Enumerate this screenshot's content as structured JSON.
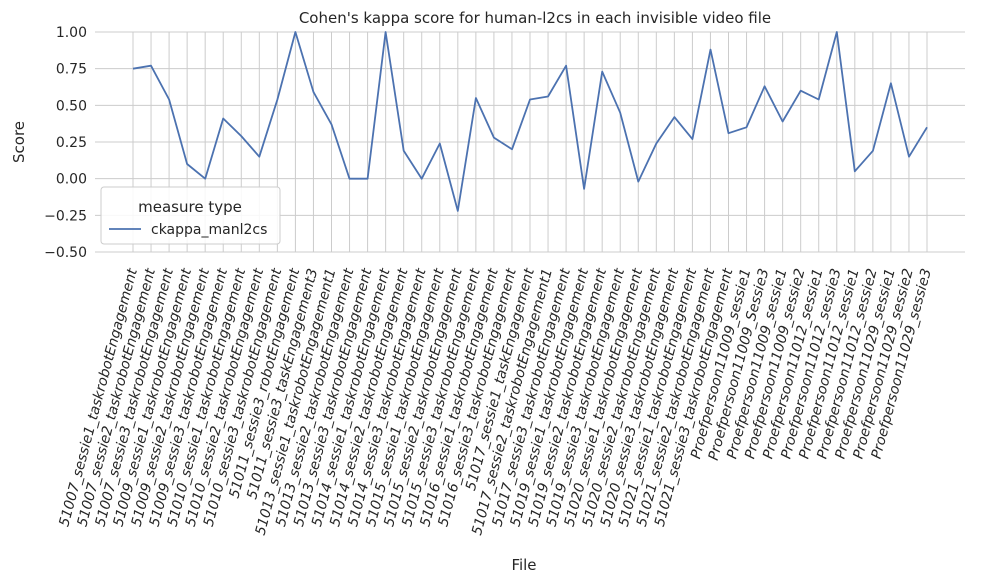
{
  "chart_data": {
    "type": "line",
    "title": "Cohen's kappa score for human-l2cs in each invisible video file",
    "xlabel": "File",
    "ylabel": "Score",
    "ylim": [
      -0.5,
      1.0
    ],
    "yticks": [
      -0.5,
      -0.25,
      0.0,
      0.25,
      0.5,
      0.75,
      1.0
    ],
    "ytick_labels": [
      "−0.50",
      "−0.25",
      "0.00",
      "0.25",
      "0.50",
      "0.75",
      "1.00"
    ],
    "grid": true,
    "legend": {
      "title": "measure type",
      "placement": "lower-left"
    },
    "categories": [
      "51007_sessie1_taskrobotEngagement",
      "51007_sessie2_taskrobotEngagement",
      "51007_sessie3_taskrobotEngagement",
      "51009_sessie1_taskrobotEngagement",
      "51009_sessie2_taskrobotEngagement",
      "51009_sessie3_taskrobotEngagement",
      "51010_sessie1_taskrobotEngagement",
      "51010_sessie2_taskrobotEngagement",
      "51010_sessie3_taskrobotEngagement",
      "51011_sessie3_robotEngagement",
      "51011_sessie3_taskEngagement3",
      "51013_sessie1_taskrobotEngagement1",
      "51013_sessie2_taskrobotEngagement",
      "51013_sessie3_taskrobotEngagement",
      "51014_sessie1_taskrobotEngagement",
      "51014_sessie2_taskrobotEngagement",
      "51014_sessie3_taskrobotEngagement",
      "51015_sessie1_taskrobotEngagement",
      "51015_sessie2_taskrobotEngagement",
      "51015_sessie3_taskrobotEngagement",
      "51016_sessie1_taskrobotEngagement",
      "51016_sessie3_taskrobotEngagement",
      "51017_sessie1_taskEngagement",
      "51017_sessie2_taskrobotEngagement1",
      "51017_sessie3_taskrobotEngagement",
      "51019_sessie1_taskrobotEngagement",
      "51019_sessie2_taskrobotEngagement",
      "51019_sessie3_taskrobotEngagement",
      "51020_sessie1_taskrobotEngagement",
      "51020_sessie2_taskrobotEngagement",
      "51020_sessie3_taskrobotEngagement",
      "51021_sessie1_taskrobotEngagement",
      "51021_sessie2_taskrobotEngagement",
      "51021_sessie3_taskrobotEngagement",
      "Proefpersoon11009_sessie1",
      "Proefpersoon11009_Sessie3",
      "Proefpersoon11009_sessie1",
      "Proefpersoon11009_sessie2",
      "Proefpersoon11012_sessie1",
      "Proefpersoon11012_sessie3",
      "Proefpersoon11012_sessie1",
      "Proefpersoon11012_sessie2",
      "Proefpersoon11029_sessie1",
      "Proefpersoon11029_sessie2",
      "Proefpersoon11029_sessie3"
    ],
    "series": [
      {
        "name": "ckappa_manl2cs",
        "color": "#4c72b0",
        "values": [
          0.75,
          0.77,
          0.54,
          0.1,
          0.0,
          0.41,
          0.29,
          0.15,
          0.54,
          1.0,
          0.59,
          0.37,
          0.0,
          0.0,
          1.0,
          0.19,
          0.0,
          0.24,
          -0.22,
          0.55,
          0.28,
          0.2,
          0.54,
          0.56,
          0.77,
          -0.07,
          0.73,
          0.45,
          -0.02,
          0.24,
          0.42,
          0.27,
          0.88,
          0.31,
          0.35,
          0.63,
          0.39,
          0.6,
          0.54,
          1.0,
          0.05,
          0.19,
          0.65,
          0.15,
          0.35
        ]
      }
    ]
  }
}
